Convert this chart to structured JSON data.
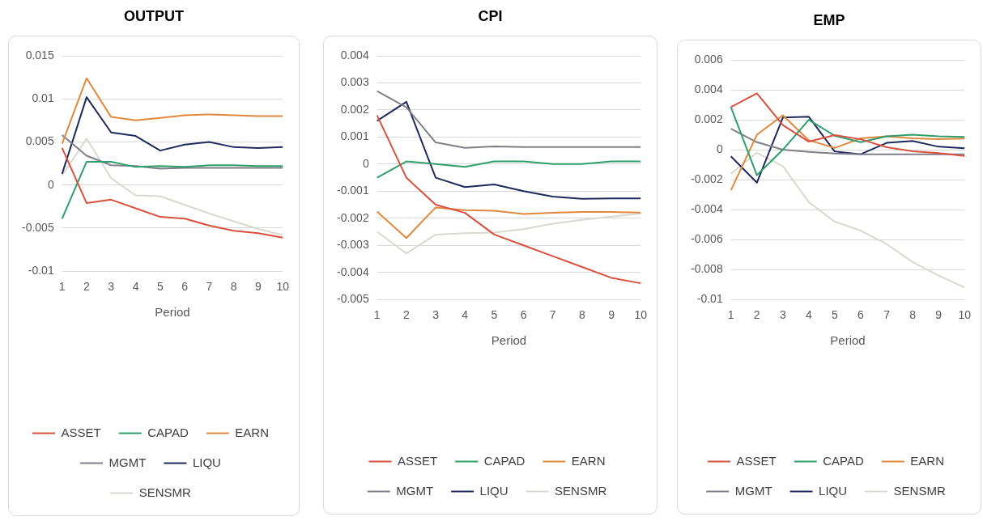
{
  "chart_data": [
    {
      "type": "line",
      "title": "OUTPUT",
      "xlabel": "Period",
      "categories": [
        "1",
        "2",
        "3",
        "4",
        "5",
        "6",
        "7",
        "8",
        "9",
        "10"
      ],
      "ylim": [
        -0.01,
        0.015
      ],
      "yticks": [
        -0.01,
        -0.005,
        0,
        0.005,
        0.01,
        0.015
      ],
      "grid": "y",
      "legend": "bottom",
      "marker": "none",
      "series": [
        {
          "name": "ASSET",
          "color": "#d9503f",
          "values": [
            0.0043,
            -0.0021,
            -0.0017,
            -0.0027,
            -0.0037,
            -0.0039,
            -0.0047,
            -0.0053,
            -0.0056,
            -0.0061
          ]
        },
        {
          "name": "CAPAD",
          "color": "#2e9e6b",
          "values": [
            -0.0039,
            0.0027,
            0.0027,
            0.0021,
            0.0022,
            0.0021,
            0.0023,
            0.0023,
            0.0022,
            0.0022
          ]
        },
        {
          "name": "EARN",
          "color": "#e0883e",
          "values": [
            0.0048,
            0.0124,
            0.0079,
            0.0075,
            0.0078,
            0.0081,
            0.0082,
            0.0081,
            0.008,
            0.008
          ]
        },
        {
          "name": "MGMT",
          "color": "#7f7f8a",
          "values": [
            0.0058,
            0.0034,
            0.0023,
            0.0022,
            0.0019,
            0.002,
            0.002,
            0.002,
            0.002,
            0.002
          ]
        },
        {
          "name": "LIQU",
          "color": "#1f2a5c",
          "values": [
            0.0013,
            0.0102,
            0.0061,
            0.0057,
            0.004,
            0.0047,
            0.005,
            0.0044,
            0.0043,
            0.0044
          ]
        },
        {
          "name": "SENSMR",
          "color": "#d9d9d0",
          "values": [
            0.0011,
            0.0054,
            0.0008,
            -0.0012,
            -0.0013,
            -0.0023,
            -0.0033,
            -0.0042,
            -0.0051,
            -0.0058
          ]
        }
      ]
    },
    {
      "type": "line",
      "title": "CPI",
      "xlabel": "Period",
      "categories": [
        "1",
        "2",
        "3",
        "4",
        "5",
        "6",
        "7",
        "8",
        "9",
        "10"
      ],
      "ylim": [
        -0.005,
        0.004
      ],
      "yticks": [
        -0.005,
        -0.004,
        -0.003,
        -0.002,
        -0.001,
        0,
        0.001,
        0.002,
        0.003,
        0.004
      ],
      "grid": "y",
      "legend": "bottom",
      "marker": "none",
      "series": [
        {
          "name": "ASSET",
          "color": "#d9503f",
          "values": [
            0.0018,
            -0.0005,
            -0.0015,
            -0.0018,
            -0.0026,
            -0.003,
            -0.0034,
            -0.0038,
            -0.0042,
            -0.0044
          ]
        },
        {
          "name": "CAPAD",
          "color": "#2e9e6b",
          "values": [
            -0.0005,
            0.0001,
            0,
            -0.0001,
            0.0001,
            0.0001,
            0,
            0,
            0.0001,
            0.0001
          ]
        },
        {
          "name": "EARN",
          "color": "#e0883e",
          "values": [
            -0.00175,
            -0.00273,
            -0.0016,
            -0.0017,
            -0.00172,
            -0.00184,
            -0.0018,
            -0.00177,
            -0.00177,
            -0.00179
          ]
        },
        {
          "name": "MGMT",
          "color": "#7f7f8a",
          "values": [
            0.0027,
            0.0021,
            0.0008,
            0.0006,
            0.00065,
            0.00063,
            0.00063,
            0.00063,
            0.00063,
            0.00063
          ]
        },
        {
          "name": "LIQU",
          "color": "#1f2a5c",
          "values": [
            0.0016,
            0.0023,
            -0.0005,
            -0.00085,
            -0.00075,
            -0.001,
            -0.0012,
            -0.00128,
            -0.00127,
            -0.00127
          ]
        },
        {
          "name": "SENSMR",
          "color": "#d9d9d0",
          "values": [
            -0.0025,
            -0.0033,
            -0.0026,
            -0.00255,
            -0.00253,
            -0.0024,
            -0.0022,
            -0.00206,
            -0.00194,
            -0.00183
          ]
        }
      ]
    },
    {
      "type": "line",
      "title": "EMP",
      "xlabel": "Period",
      "categories": [
        "1",
        "2",
        "3",
        "4",
        "5",
        "6",
        "7",
        "8",
        "9",
        "10"
      ],
      "ylim": [
        -0.01,
        0.006
      ],
      "yticks": [
        -0.01,
        -0.008,
        -0.006,
        -0.004,
        -0.002,
        0,
        0.002,
        0.004,
        0.006
      ],
      "grid": "y",
      "legend": "bottom",
      "marker": "none",
      "series": [
        {
          "name": "ASSET",
          "color": "#d9503f",
          "values": [
            0.00285,
            0.00376,
            0.00164,
            0.00054,
            0.00098,
            0.0007,
            0.00017,
            -0.0001,
            -0.00022,
            -0.00042
          ]
        },
        {
          "name": "CAPAD",
          "color": "#2e9e6b",
          "values": [
            0.00285,
            -0.0017,
            0,
            0.002,
            0.00093,
            0.0005,
            0.0009,
            0.001,
            0.0009,
            0.00085
          ]
        },
        {
          "name": "EARN",
          "color": "#e0883e",
          "values": [
            -0.0027,
            0.001,
            0.0023,
            0.00063,
            0.00012,
            0.00076,
            0.0009,
            0.00076,
            0.0007,
            0.00075
          ]
        },
        {
          "name": "MGMT",
          "color": "#7f7f8a",
          "values": [
            0.0014,
            0.0005,
            0,
            -0.00015,
            -0.00025,
            -0.0003,
            -0.0003,
            -0.0003,
            -0.0003,
            -0.0003
          ]
        },
        {
          "name": "LIQU",
          "color": "#1f2a5c",
          "values": [
            -0.00044,
            -0.0022,
            0.00215,
            0.0022,
            -0.00012,
            -0.0003,
            0.00046,
            0.00058,
            0.0002,
            0.0001
          ]
        },
        {
          "name": "SENSMR",
          "color": "#d9d9d0",
          "values": [
            -0.0016,
            -0.0002,
            -0.0011,
            -0.0035,
            -0.0048,
            -0.0054,
            -0.0063,
            -0.0075,
            -0.0084,
            -0.0092
          ]
        }
      ]
    }
  ]
}
